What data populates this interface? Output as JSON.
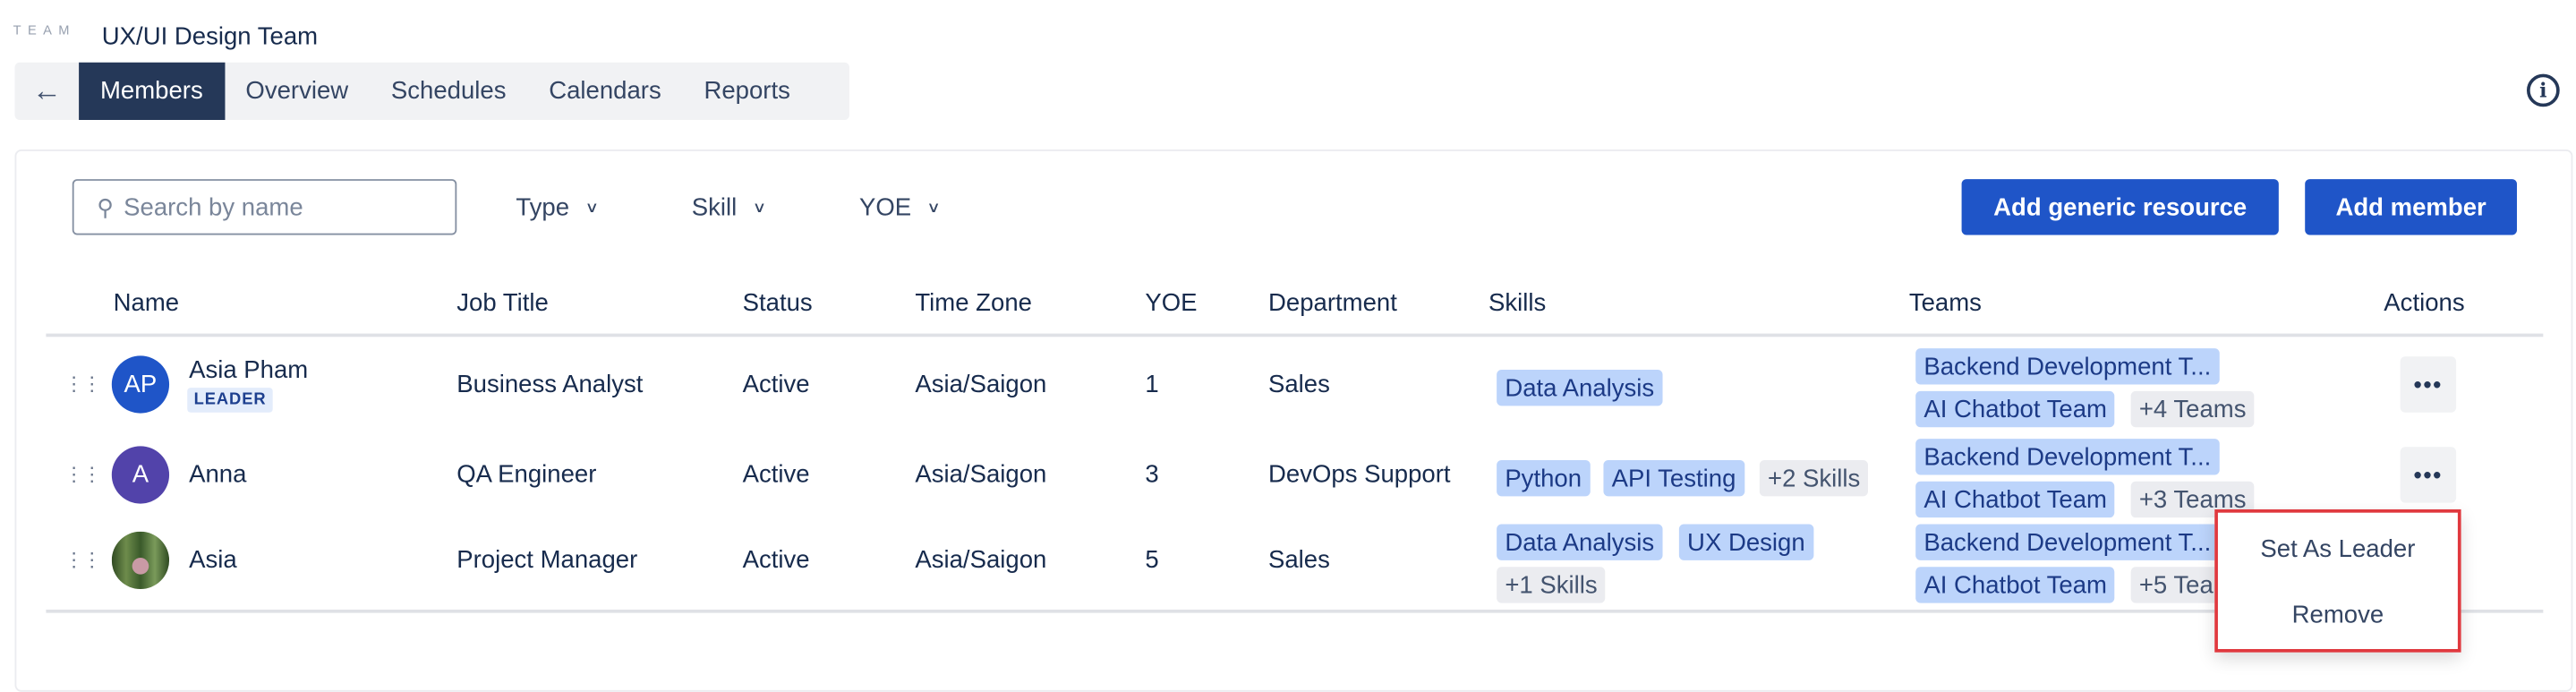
{
  "header": {
    "team_label": "TEAM",
    "title": "UX/UI Design Team"
  },
  "tabs": [
    {
      "label": "Members",
      "active": true
    },
    {
      "label": "Overview"
    },
    {
      "label": "Schedules"
    },
    {
      "label": "Calendars"
    },
    {
      "label": "Reports"
    }
  ],
  "toolbar": {
    "search_placeholder": "Search by name",
    "filters": [
      "Type",
      "Skill",
      "YOE"
    ],
    "add_generic": "Add generic resource",
    "add_member": "Add member"
  },
  "table": {
    "columns": [
      "Name",
      "Job Title",
      "Status",
      "Time Zone",
      "YOE",
      "Department",
      "Skills",
      "Teams",
      "Actions"
    ],
    "rows": [
      {
        "initials": "AP",
        "avatar_color": "#1f55c8",
        "name": "Asia Pham",
        "badge": "LEADER",
        "job": "Business Analyst",
        "status": "Active",
        "tz": "Asia/Saigon",
        "yoe": "1",
        "dept": "Sales",
        "skills": [
          "Data Analysis"
        ],
        "skills_more": "",
        "teams": [
          "Backend Development T...",
          "AI Chatbot Team"
        ],
        "teams_more": "+4 Teams"
      },
      {
        "initials": "A",
        "avatar_color": "#5243aa",
        "name": "Anna",
        "badge": "",
        "job": "QA Engineer",
        "status": "Active",
        "tz": "Asia/Saigon",
        "yoe": "3",
        "dept": "DevOps Support",
        "skills": [
          "Python",
          "API Testing"
        ],
        "skills_more": "+2 Skills",
        "teams": [
          "Backend Development T...",
          "AI Chatbot Team"
        ],
        "teams_more": "+3 Teams"
      },
      {
        "initials": "",
        "avatar_color": "#4a6b3a",
        "name": "Asia",
        "badge": "",
        "job": "Project Manager",
        "status": "Active",
        "tz": "Asia/Saigon",
        "yoe": "5",
        "dept": "Sales",
        "skills": [
          "Data Analysis",
          "UX Design"
        ],
        "skills_more": "+1 Skills",
        "teams": [
          "Backend Development T...",
          "AI Chatbot Team"
        ],
        "teams_more": "+5 Teams"
      }
    ]
  },
  "menu": {
    "items": [
      "Set As Leader",
      "Remove"
    ]
  },
  "colors": {
    "primary": "#1f55c8",
    "nav_active": "#253858",
    "tag_blue": "#bcd4fb",
    "highlight": "#e0383e"
  }
}
